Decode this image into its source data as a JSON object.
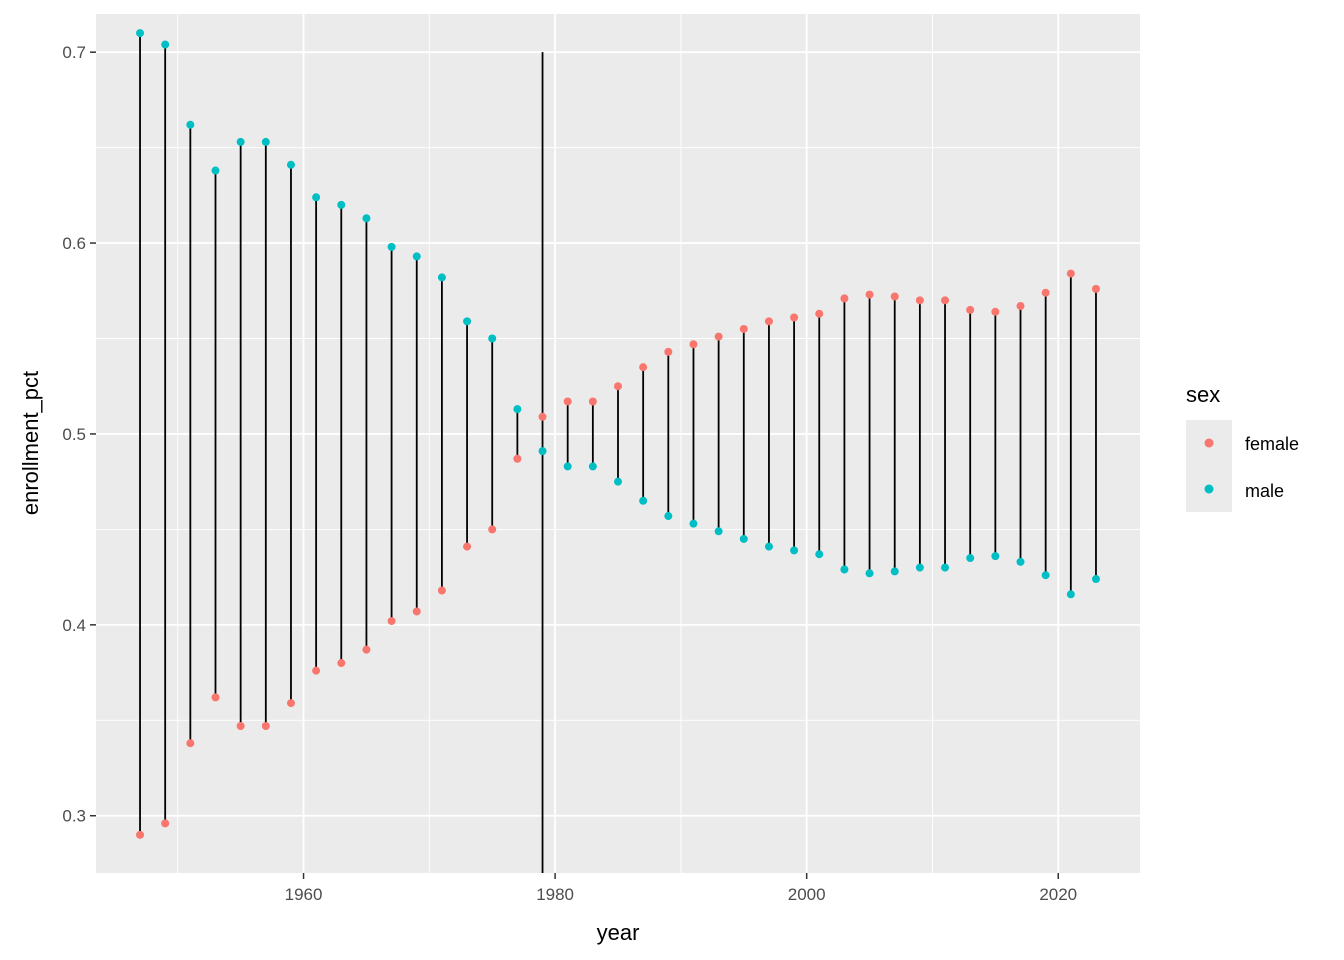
{
  "chart_data": {
    "type": "scatter",
    "xlabel": "year",
    "ylabel": "enrollment_pct",
    "xlim": [
      1943.5,
      2026.5
    ],
    "ylim": [
      0.27,
      0.72
    ],
    "x_ticks": [
      1960,
      1980,
      2000,
      2020
    ],
    "x_tick_labels": [
      "1960",
      "1980",
      "2000",
      "2020"
    ],
    "x_minor_ticks": [
      1950,
      1970,
      1990,
      2010
    ],
    "y_ticks": [
      0.3,
      0.4,
      0.5,
      0.6,
      0.7
    ],
    "y_tick_labels": [
      "0.3",
      "0.4",
      "0.5",
      "0.6",
      "0.7"
    ],
    "y_minor_ticks": [
      0.35,
      0.45,
      0.55,
      0.65
    ],
    "grid": true,
    "background": "#ebebeb",
    "legend": {
      "title": "sex",
      "position": "right",
      "entries": [
        {
          "label": "female",
          "color": "#f8766d"
        },
        {
          "label": "male",
          "color": "#00bfc4"
        }
      ]
    },
    "x": [
      1947,
      1949,
      1951,
      1953,
      1955,
      1957,
      1959,
      1961,
      1963,
      1965,
      1967,
      1969,
      1971,
      1973,
      1975,
      1977,
      1979,
      1981,
      1983,
      1985,
      1987,
      1989,
      1991,
      1993,
      1995,
      1997,
      1999,
      2001,
      2003,
      2005,
      2007,
      2009,
      2011,
      2013,
      2015,
      2017,
      2019,
      2021,
      2023
    ],
    "series": [
      {
        "name": "female",
        "color": "#f8766d",
        "values": [
          0.29,
          0.296,
          0.338,
          0.362,
          0.347,
          0.347,
          0.359,
          0.376,
          0.38,
          0.387,
          0.402,
          0.407,
          0.418,
          0.441,
          0.45,
          0.487,
          0.509,
          0.517,
          0.517,
          0.525,
          0.535,
          0.543,
          0.547,
          0.551,
          0.555,
          0.559,
          0.561,
          0.563,
          0.571,
          0.573,
          0.572,
          0.57,
          0.57,
          0.565,
          0.564,
          0.567,
          0.574,
          0.584,
          0.576
        ]
      },
      {
        "name": "male",
        "color": "#00bfc4",
        "values": [
          0.71,
          0.704,
          0.662,
          0.638,
          0.653,
          0.653,
          0.641,
          0.624,
          0.62,
          0.613,
          0.598,
          0.593,
          0.582,
          0.559,
          0.55,
          0.513,
          0.491,
          0.483,
          0.483,
          0.475,
          0.465,
          0.457,
          0.453,
          0.449,
          0.445,
          0.441,
          0.439,
          0.437,
          0.429,
          0.427,
          0.428,
          0.43,
          0.43,
          0.435,
          0.436,
          0.433,
          0.426,
          0.416,
          0.424
        ]
      }
    ],
    "segments_note_excluded": true,
    "outlier_segment": {
      "x": 1979,
      "y_from": 0.27,
      "y_to": 0.7
    }
  }
}
